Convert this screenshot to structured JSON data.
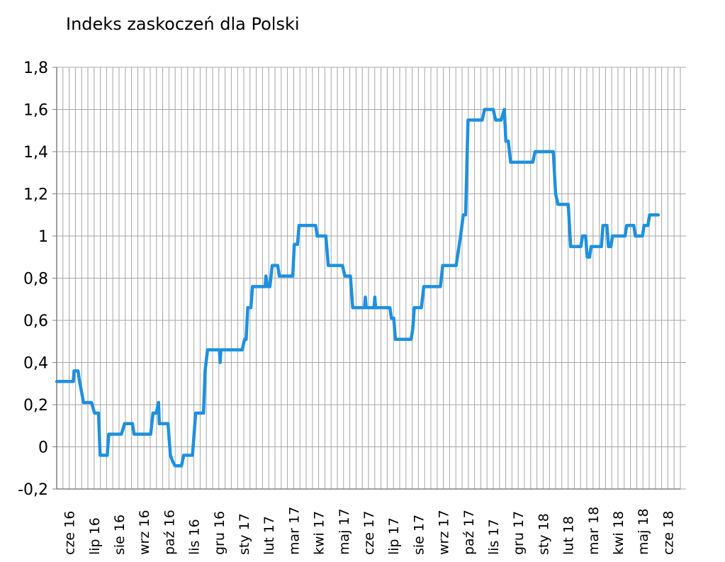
{
  "chart_data": {
    "type": "line",
    "title": "Indeks zaskoczeń dla Polski",
    "xlabel": "",
    "ylabel": "",
    "ylim": [
      -0.2,
      1.8
    ],
    "yticks": [
      -0.2,
      0,
      0.2,
      0.4,
      0.6,
      0.8,
      1,
      1.2,
      1.4,
      1.6,
      1.8
    ],
    "ytick_labels": [
      "-0,2",
      "0",
      "0,2",
      "0,4",
      "0,6",
      "0,8",
      "1",
      "1,2",
      "1,4",
      "1,6",
      "1,8"
    ],
    "x_tick_labels": [
      "cze 16",
      "lip 16",
      "sie 16",
      "wrz 16",
      "paź 16",
      "lis 16",
      "gru 16",
      "sty 17",
      "lut 17",
      "mar 17",
      "kwi 17",
      "maj 17",
      "cze 17",
      "lip 17",
      "sie 17",
      "wrz 17",
      "paź 17",
      "lis 17",
      "gru 17",
      "sty 18",
      "lut 18",
      "mar 18",
      "kwi 18",
      "maj 18",
      "cze 18"
    ],
    "x_range": [
      "2016-06-01",
      "2018-07-31"
    ],
    "grid": {
      "horizontal": true,
      "vertical": true,
      "vertical_per_month": 4
    },
    "series": [
      {
        "color": "#1E90E0",
        "points": [
          [
            "2016-06-01",
            0.31
          ],
          [
            "2016-06-22",
            0.31
          ],
          [
            "2016-06-23",
            0.36
          ],
          [
            "2016-06-28",
            0.36
          ],
          [
            "2016-06-30",
            0.31
          ],
          [
            "2016-07-05",
            0.21
          ],
          [
            "2016-07-15",
            0.21
          ],
          [
            "2016-07-19",
            0.16
          ],
          [
            "2016-07-24",
            0.16
          ],
          [
            "2016-07-26",
            -0.04
          ],
          [
            "2016-08-04",
            -0.04
          ],
          [
            "2016-08-06",
            0.06
          ],
          [
            "2016-08-22",
            0.06
          ],
          [
            "2016-08-26",
            0.11
          ],
          [
            "2016-09-05",
            0.11
          ],
          [
            "2016-09-07",
            0.06
          ],
          [
            "2016-09-28",
            0.06
          ],
          [
            "2016-10-01",
            0.16
          ],
          [
            "2016-10-05",
            0.16
          ],
          [
            "2016-10-08",
            0.21
          ],
          [
            "2016-10-09",
            0.11
          ],
          [
            "2016-10-20",
            0.11
          ],
          [
            "2016-10-23",
            -0.04
          ],
          [
            "2016-10-26",
            -0.07
          ],
          [
            "2016-10-29",
            -0.09
          ],
          [
            "2016-11-06",
            -0.09
          ],
          [
            "2016-11-09",
            -0.04
          ],
          [
            "2016-11-20",
            -0.04
          ],
          [
            "2016-11-24",
            0.16
          ],
          [
            "2016-12-04",
            0.16
          ],
          [
            "2016-12-06",
            0.36
          ],
          [
            "2016-12-09",
            0.46
          ],
          [
            "2016-12-24",
            0.46
          ],
          [
            "2016-12-25",
            0.4
          ],
          [
            "2016-12-26",
            0.46
          ],
          [
            "2017-01-22",
            0.46
          ],
          [
            "2017-01-25",
            0.51
          ],
          [
            "2017-01-27",
            0.51
          ],
          [
            "2017-01-29",
            0.66
          ],
          [
            "2017-02-02",
            0.66
          ],
          [
            "2017-02-04",
            0.76
          ],
          [
            "2017-02-20",
            0.76
          ],
          [
            "2017-02-21",
            0.81
          ],
          [
            "2017-02-23",
            0.76
          ],
          [
            "2017-02-26",
            0.76
          ],
          [
            "2017-03-01",
            0.86
          ],
          [
            "2017-03-08",
            0.86
          ],
          [
            "2017-03-10",
            0.81
          ],
          [
            "2017-03-27",
            0.81
          ],
          [
            "2017-03-29",
            0.96
          ],
          [
            "2017-04-02",
            0.96
          ],
          [
            "2017-04-04",
            1.05
          ],
          [
            "2017-04-25",
            1.05
          ],
          [
            "2017-04-27",
            1.0
          ],
          [
            "2017-05-08",
            1.0
          ],
          [
            "2017-05-11",
            0.86
          ],
          [
            "2017-05-29",
            0.86
          ],
          [
            "2017-06-01",
            0.81
          ],
          [
            "2017-06-08",
            0.81
          ],
          [
            "2017-06-11",
            0.66
          ],
          [
            "2017-06-26",
            0.66
          ],
          [
            "2017-06-27",
            0.71
          ],
          [
            "2017-06-28",
            0.66
          ],
          [
            "2017-07-08",
            0.66
          ],
          [
            "2017-07-09",
            0.71
          ],
          [
            "2017-07-10",
            0.66
          ],
          [
            "2017-07-28",
            0.66
          ],
          [
            "2017-07-30",
            0.61
          ],
          [
            "2017-08-02",
            0.61
          ],
          [
            "2017-08-04",
            0.51
          ],
          [
            "2017-08-24",
            0.51
          ],
          [
            "2017-08-26",
            0.56
          ],
          [
            "2017-08-28",
            0.66
          ],
          [
            "2017-09-06",
            0.66
          ],
          [
            "2017-09-09",
            0.76
          ],
          [
            "2017-09-30",
            0.76
          ],
          [
            "2017-10-03",
            0.86
          ],
          [
            "2017-10-20",
            0.86
          ],
          [
            "2017-10-22",
            0.91
          ],
          [
            "2017-10-24",
            0.96
          ],
          [
            "2017-10-26",
            1.01
          ],
          [
            "2017-10-29",
            1.1
          ],
          [
            "2017-11-01",
            1.1
          ],
          [
            "2017-11-04",
            1.55
          ],
          [
            "2017-11-22",
            1.55
          ],
          [
            "2017-11-25",
            1.6
          ],
          [
            "2017-12-06",
            1.6
          ],
          [
            "2017-12-09",
            1.55
          ],
          [
            "2017-12-16",
            1.55
          ],
          [
            "2017-12-20",
            1.6
          ],
          [
            "2017-12-22",
            1.45
          ],
          [
            "2017-12-25",
            1.45
          ],
          [
            "2017-12-28",
            1.35
          ],
          [
            "2018-01-25",
            1.35
          ],
          [
            "2018-01-28",
            1.4
          ],
          [
            "2018-02-20",
            1.4
          ],
          [
            "2018-02-23",
            1.2
          ],
          [
            "2018-02-26",
            1.15
          ],
          [
            "2018-03-11",
            1.15
          ],
          [
            "2018-03-14",
            0.95
          ],
          [
            "2018-03-27",
            0.95
          ],
          [
            "2018-03-29",
            1.0
          ],
          [
            "2018-04-02",
            1.0
          ],
          [
            "2018-04-04",
            0.9
          ],
          [
            "2018-04-07",
            0.9
          ],
          [
            "2018-04-09",
            0.95
          ],
          [
            "2018-04-22",
            0.95
          ],
          [
            "2018-04-24",
            1.05
          ],
          [
            "2018-04-29",
            1.05
          ],
          [
            "2018-05-01",
            0.95
          ],
          [
            "2018-05-04",
            0.95
          ],
          [
            "2018-05-06",
            1.0
          ],
          [
            "2018-05-22",
            1.0
          ],
          [
            "2018-05-24",
            1.05
          ],
          [
            "2018-06-02",
            1.05
          ],
          [
            "2018-06-04",
            1.0
          ],
          [
            "2018-06-13",
            1.0
          ],
          [
            "2018-06-15",
            1.05
          ],
          [
            "2018-06-20",
            1.05
          ],
          [
            "2018-06-22",
            1.1
          ],
          [
            "2018-07-03",
            1.1
          ]
        ]
      }
    ]
  }
}
